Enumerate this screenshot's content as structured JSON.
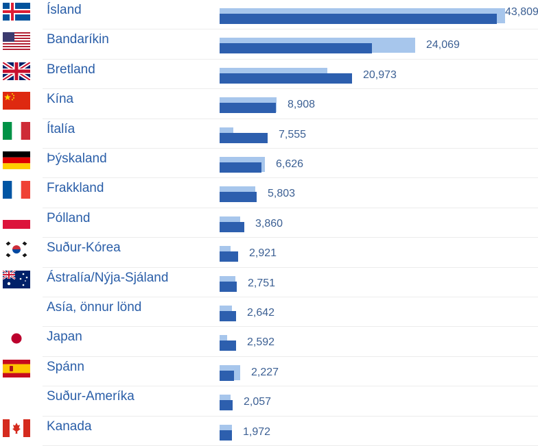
{
  "chart_data": {
    "type": "bar",
    "orientation": "horizontal",
    "categories": [
      "Ísland",
      "Bandaríkin",
      "Bretland",
      "Kína",
      "Ítalía",
      "Þýskaland",
      "Frakkland",
      "Pólland",
      "Suður-Kórea",
      "Ástralía/Nýja-Sjáland",
      "Asía, önnur lönd",
      "Japan",
      "Spánn",
      "Suður-Ameríka",
      "Kanada"
    ],
    "flags": [
      "iceland-flag-icon",
      "usa-flag-icon",
      "uk-flag-icon",
      "china-flag-icon",
      "italy-flag-icon",
      "germany-flag-icon",
      "france-flag-icon",
      "poland-flag-icon",
      "south-korea-flag-icon",
      "australia-flag-icon",
      "",
      "japan-flag-icon",
      "spain-flag-icon",
      "",
      "canada-flag-icon"
    ],
    "value_labels": [
      "43,809",
      "24,069",
      "20,973",
      "8,908",
      "7,555",
      "6,626",
      "5,803",
      "3,860",
      "2,921",
      "2,751",
      "2,642",
      "2,592",
      "2,227",
      "2,057",
      "1,972"
    ],
    "series": [
      {
        "values": [
          43809,
          24069,
          20973,
          8908,
          7555,
          6626,
          5803,
          3860,
          2921,
          2751,
          2642,
          2592,
          2227,
          2057,
          1972
        ],
        "color": "#2d5fae"
      },
      {
        "values": [
          45100,
          30900,
          17000,
          9000,
          2200,
          7200,
          5600,
          3200,
          1700,
          2500,
          1900,
          1200,
          3300,
          1700,
          1900
        ],
        "color": "#a7c6ec"
      }
    ],
    "xlim": [
      0,
      45100
    ],
    "grid": false,
    "legend": "none"
  }
}
